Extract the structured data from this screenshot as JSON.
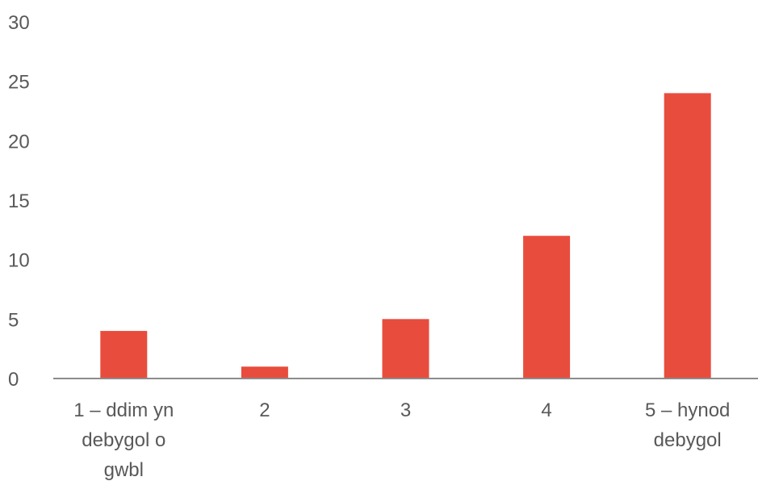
{
  "chart_data": {
    "type": "bar",
    "categories": [
      [
        "1 – ddim yn",
        "debygol o",
        "gwbl"
      ],
      [
        "2"
      ],
      [
        "3"
      ],
      [
        "4"
      ],
      [
        "5 – hynod",
        "debygol"
      ]
    ],
    "values": [
      4,
      1,
      5,
      12,
      24
    ],
    "y_ticks": [
      "0",
      "5",
      "10",
      "15",
      "20",
      "25",
      "30"
    ],
    "ylim": [
      0,
      30
    ],
    "title": "",
    "xlabel": "",
    "ylabel": "",
    "grid": false,
    "legend": "none",
    "colors": {
      "bar": "#E84C3D",
      "axis": "#8C8C8C",
      "text": "#595959"
    }
  }
}
